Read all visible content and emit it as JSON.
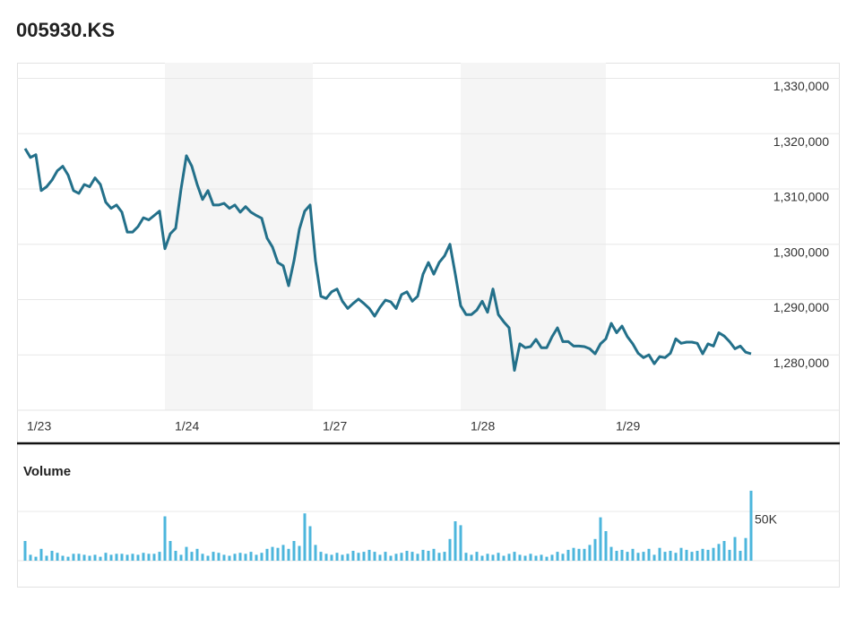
{
  "chart_data": [
    {
      "type": "line",
      "title": "005930.KS",
      "color": "#23708a",
      "x": [
        0,
        1,
        2,
        3,
        4,
        5,
        6,
        7,
        8,
        9,
        10,
        11,
        12,
        13,
        14,
        15,
        16,
        17,
        18,
        19,
        20,
        21,
        22,
        23,
        24,
        25,
        26,
        27,
        28,
        29,
        30,
        31,
        32,
        33,
        34,
        35,
        36,
        37,
        38,
        39,
        40,
        41,
        42,
        43,
        44,
        45,
        46,
        47,
        48,
        49,
        50,
        51,
        52,
        53,
        54,
        55,
        56,
        57,
        58,
        59,
        60,
        61,
        62,
        63,
        64,
        65,
        66,
        67,
        68,
        69,
        70,
        71,
        72,
        73,
        74,
        75,
        76,
        77,
        78,
        79,
        80,
        81,
        82,
        83,
        84,
        85,
        86,
        87,
        88,
        89,
        90,
        91,
        92,
        93,
        94,
        95,
        96,
        97,
        98,
        99,
        100,
        101,
        102,
        103,
        104,
        105,
        106,
        107,
        108,
        109,
        110,
        111,
        112,
        113,
        114,
        115,
        116,
        117,
        118,
        119,
        120,
        121,
        122,
        123,
        124,
        125,
        126,
        127,
        128,
        129,
        130,
        131,
        132,
        133,
        134,
        135
      ],
      "values": [
        1317300,
        1315700,
        1316200,
        1309700,
        1310400,
        1311600,
        1313300,
        1314100,
        1312500,
        1309700,
        1309200,
        1310800,
        1310400,
        1312000,
        1310800,
        1307600,
        1306500,
        1307100,
        1305800,
        1302200,
        1302200,
        1303200,
        1304800,
        1304400,
        1305200,
        1306000,
        1299200,
        1301900,
        1302900,
        1310000,
        1316000,
        1314100,
        1310800,
        1308100,
        1309700,
        1307100,
        1307100,
        1307400,
        1306500,
        1307100,
        1305800,
        1306800,
        1305800,
        1305200,
        1304700,
        1301100,
        1299500,
        1296700,
        1296100,
        1292500,
        1297000,
        1302700,
        1306000,
        1307100,
        1297000,
        1290600,
        1290200,
        1291400,
        1291900,
        1289700,
        1288400,
        1289300,
        1290100,
        1289300,
        1288400,
        1287000,
        1288600,
        1289900,
        1289600,
        1288400,
        1290900,
        1291400,
        1289700,
        1290600,
        1294600,
        1296700,
        1294600,
        1296700,
        1297900,
        1300000,
        1294600,
        1288900,
        1287300,
        1287300,
        1288100,
        1289700,
        1287700,
        1291900,
        1287300,
        1286000,
        1284900,
        1277200,
        1282000,
        1281300,
        1281500,
        1282800,
        1281300,
        1281300,
        1283300,
        1284900,
        1282400,
        1282400,
        1281600,
        1281600,
        1281500,
        1281100,
        1280200,
        1282000,
        1282900,
        1285700,
        1284000,
        1285200,
        1283300,
        1282000,
        1280300,
        1279500,
        1280000,
        1278400,
        1279700,
        1279500,
        1280300,
        1282900,
        1282100,
        1282300,
        1282300,
        1282100,
        1280200,
        1282000,
        1281600,
        1284000,
        1283400,
        1282400,
        1281100,
        1281600,
        1280500,
        1280200
      ],
      "xlim": [
        -1.5,
        135.5
      ],
      "xticks": [
        {
          "value": -1.5,
          "label": "1/23"
        },
        {
          "value": 26,
          "label": "1/24"
        },
        {
          "value": 53.5,
          "label": "1/27"
        },
        {
          "value": 81,
          "label": "1/28"
        },
        {
          "value": 108,
          "label": "1/29"
        }
      ],
      "ylim": [
        1270000,
        1332500
      ],
      "yticks": [
        {
          "value": 1280000,
          "label": "1,280,000"
        },
        {
          "value": 1290000,
          "label": "1,290,000"
        },
        {
          "value": 1300000,
          "label": "1,300,000"
        },
        {
          "value": 1310000,
          "label": "1,310,000"
        },
        {
          "value": 1320000,
          "label": "1,320,000"
        },
        {
          "value": 1330000,
          "label": "1,330,000"
        }
      ],
      "grid": true
    },
    {
      "type": "bar",
      "title": "Volume",
      "color": "#4cb6dc",
      "x": [
        0,
        1,
        2,
        3,
        4,
        5,
        6,
        7,
        8,
        9,
        10,
        11,
        12,
        13,
        14,
        15,
        16,
        17,
        18,
        19,
        20,
        21,
        22,
        23,
        24,
        25,
        26,
        27,
        28,
        29,
        30,
        31,
        32,
        33,
        34,
        35,
        36,
        37,
        38,
        39,
        40,
        41,
        42,
        43,
        44,
        45,
        46,
        47,
        48,
        49,
        50,
        51,
        52,
        53,
        54,
        55,
        56,
        57,
        58,
        59,
        60,
        61,
        62,
        63,
        64,
        65,
        66,
        67,
        68,
        69,
        70,
        71,
        72,
        73,
        74,
        75,
        76,
        77,
        78,
        79,
        80,
        81,
        82,
        83,
        84,
        85,
        86,
        87,
        88,
        89,
        90,
        91,
        92,
        93,
        94,
        95,
        96,
        97,
        98,
        99,
        100,
        101,
        102,
        103,
        104,
        105,
        106,
        107,
        108,
        109,
        110,
        111,
        112,
        113,
        114,
        115,
        116,
        117,
        118,
        119,
        120,
        121,
        122,
        123,
        124,
        125,
        126,
        127,
        128,
        129,
        130,
        131,
        132,
        133,
        134,
        135
      ],
      "values": [
        20000,
        6000,
        4000,
        12000,
        5000,
        10000,
        8000,
        5000,
        4000,
        7000,
        7000,
        6000,
        5000,
        6000,
        4000,
        8000,
        6000,
        7000,
        7000,
        6000,
        7000,
        6000,
        8000,
        7000,
        7000,
        9000,
        45000,
        20000,
        10000,
        6000,
        14000,
        9000,
        12000,
        7000,
        5000,
        9000,
        8000,
        6000,
        5000,
        7000,
        8000,
        7000,
        9000,
        6000,
        8000,
        12000,
        14000,
        13000,
        16000,
        12000,
        20000,
        15000,
        48000,
        35000,
        16000,
        9000,
        7000,
        6000,
        8000,
        6000,
        7000,
        10000,
        8000,
        9000,
        11000,
        9000,
        6000,
        9000,
        5000,
        7000,
        8000,
        10000,
        9000,
        7000,
        11000,
        10000,
        12000,
        8000,
        9000,
        22000,
        40000,
        36000,
        8000,
        6000,
        9000,
        5000,
        7000,
        6000,
        8000,
        5000,
        7000,
        9000,
        6000,
        5000,
        7000,
        5000,
        6000,
        4000,
        6000,
        9000,
        7000,
        11000,
        13000,
        12000,
        12000,
        16000,
        22000,
        44000,
        30000,
        14000,
        10000,
        11000,
        9000,
        12000,
        8000,
        9000,
        12000,
        6000,
        13000,
        9000,
        10000,
        8000,
        13000,
        11000,
        9000,
        10000,
        12000,
        11000,
        13000,
        17000,
        20000,
        11000,
        24000,
        10000,
        23000,
        71000
      ],
      "xlim": [
        -1.5,
        135.5
      ],
      "ylim": [
        0,
        75000
      ],
      "yticks": [
        {
          "value": 50000,
          "label": "50K"
        }
      ],
      "grid": true
    }
  ]
}
